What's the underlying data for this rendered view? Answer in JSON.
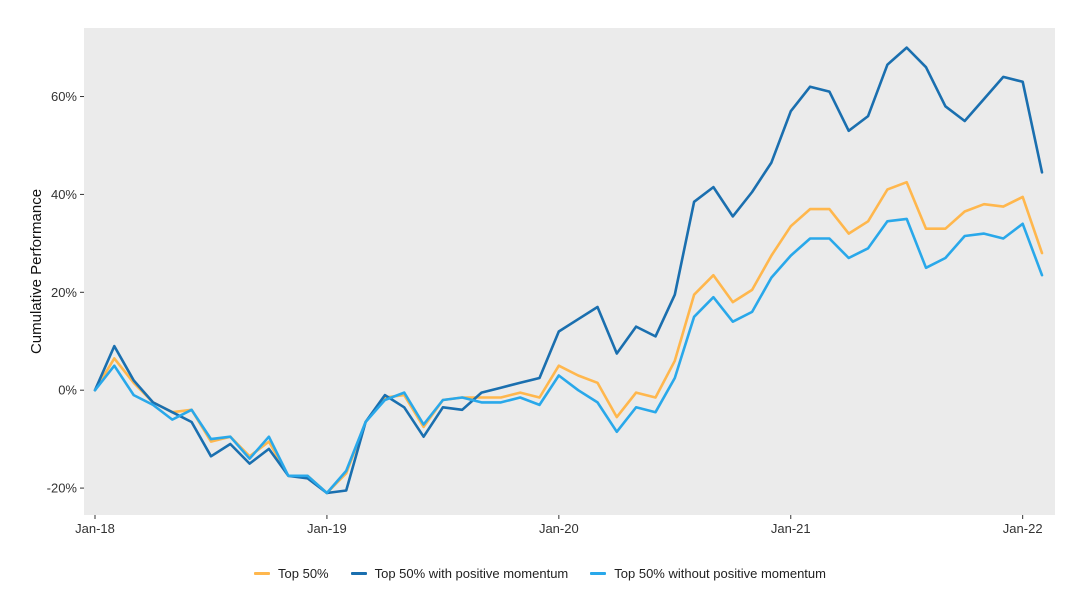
{
  "chart_data": {
    "type": "line",
    "xlabel": "",
    "ylabel": "Cumulative Performance",
    "x": [
      "2018-01",
      "2018-02",
      "2018-03",
      "2018-04",
      "2018-05",
      "2018-06",
      "2018-07",
      "2018-08",
      "2018-09",
      "2018-10",
      "2018-11",
      "2018-12",
      "2019-01",
      "2019-02",
      "2019-03",
      "2019-04",
      "2019-05",
      "2019-06",
      "2019-07",
      "2019-08",
      "2019-09",
      "2019-10",
      "2019-11",
      "2019-12",
      "2020-01",
      "2020-02",
      "2020-03",
      "2020-04",
      "2020-05",
      "2020-06",
      "2020-07",
      "2020-08",
      "2020-09",
      "2020-10",
      "2020-11",
      "2020-12",
      "2021-01",
      "2021-02",
      "2021-03",
      "2021-04",
      "2021-05",
      "2021-06",
      "2021-07",
      "2021-08",
      "2021-09",
      "2021-10",
      "2021-11",
      "2021-12",
      "2022-01",
      "2022-02"
    ],
    "x_ticks": [
      "Jan-18",
      "Jan-19",
      "Jan-20",
      "Jan-21",
      "Jan-22"
    ],
    "y_ticks": [
      "-20%",
      "0%",
      "20%",
      "40%",
      "60%"
    ],
    "y_tick_values": [
      -20,
      0,
      20,
      40,
      60
    ],
    "ylim": [
      -25.5,
      74
    ],
    "grid": false,
    "panel_background": "#ebebeb",
    "legend_position": "bottom",
    "series": [
      {
        "name": "Top 50%",
        "color": "#ffb74d",
        "values": [
          0,
          6.5,
          1.5,
          -2.5,
          -4.5,
          -4,
          -10.5,
          -9.5,
          -13.5,
          -10.5,
          -17.5,
          -17.5,
          -21,
          -17,
          -6.5,
          -1.5,
          -1,
          -7.5,
          -2,
          -1.5,
          -1.5,
          -1.5,
          -0.5,
          -1.5,
          5,
          3,
          1.5,
          -5.5,
          -0.5,
          -1.5,
          6,
          19.5,
          23.5,
          18,
          20.5,
          27.5,
          33.5,
          37,
          37,
          32,
          34.5,
          41,
          42.5,
          33,
          33,
          36.5,
          38,
          37.5,
          39.5,
          28
        ]
      },
      {
        "name": "Top 50% with positive momentum",
        "color": "#1a6faf",
        "values": [
          0,
          9,
          2,
          -2.5,
          -4.5,
          -6.5,
          -13.5,
          -11,
          -15,
          -12,
          -17.5,
          -18,
          -21,
          -20.5,
          -6.5,
          -1,
          -3.5,
          -9.5,
          -3.5,
          -4,
          -0.5,
          0.5,
          1.5,
          2.5,
          12,
          14.5,
          17,
          7.5,
          13,
          11,
          19.5,
          38.5,
          41.5,
          35.5,
          40.5,
          46.5,
          57,
          62,
          61,
          53,
          56,
          66.5,
          70,
          66,
          58,
          55,
          59.5,
          64,
          63,
          44.5
        ]
      },
      {
        "name": "Top 50% without positive momentum",
        "color": "#29a8ea",
        "values": [
          0,
          5,
          -1,
          -3,
          -6,
          -4,
          -10,
          -9.5,
          -14,
          -9.5,
          -17.5,
          -17.5,
          -21,
          -16.5,
          -6.5,
          -2,
          -0.5,
          -7,
          -2,
          -1.5,
          -2.5,
          -2.5,
          -1.5,
          -3,
          3,
          0,
          -2.5,
          -8.5,
          -3.5,
          -4.5,
          2.5,
          15,
          19,
          14,
          16,
          23,
          27.5,
          31,
          31,
          27,
          29,
          34.5,
          35,
          25,
          27,
          31.5,
          32,
          31,
          34,
          23.5
        ]
      }
    ]
  }
}
